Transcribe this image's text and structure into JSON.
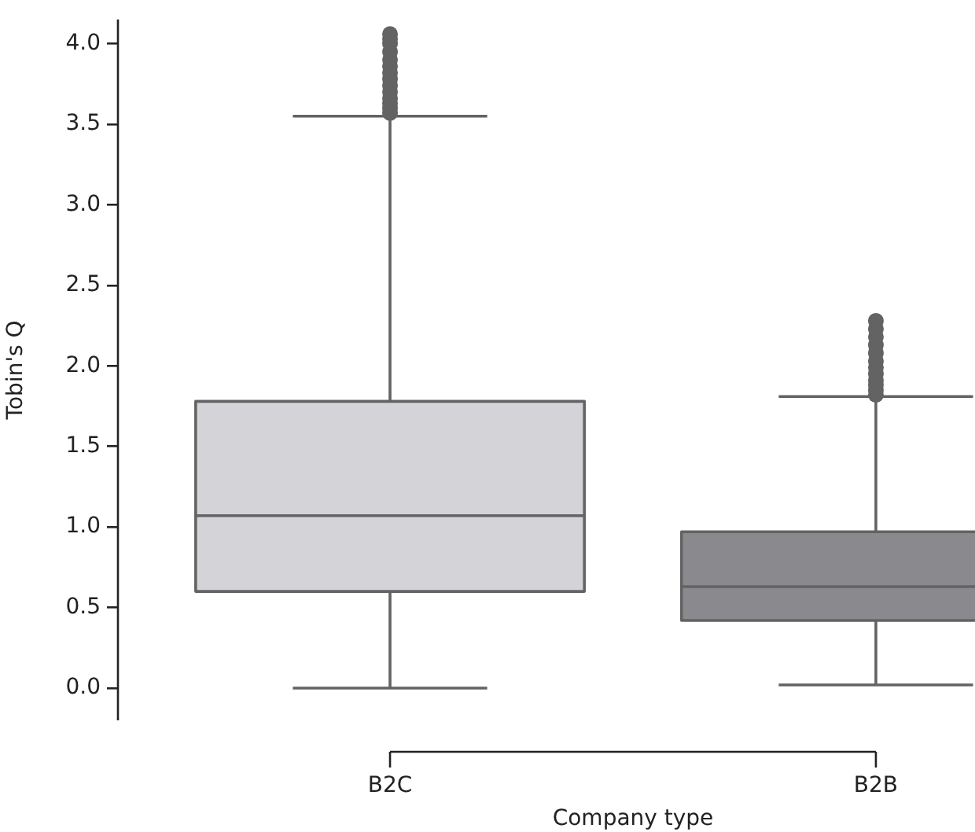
{
  "chart_data": {
    "type": "box",
    "xlabel": "Company type",
    "ylabel": "Tobin's Q",
    "categories": [
      "B2C",
      "B2B"
    ],
    "colors": [
      "#d4d4d8",
      "#8a8a8e"
    ],
    "boxes": [
      {
        "low": 0,
        "q1": 0.6,
        "median": 1.07,
        "q3": 1.78,
        "high": 3.55,
        "outliers": [
          3.57,
          3.6,
          3.63,
          3.66,
          3.7,
          3.74,
          3.78,
          3.82,
          3.86,
          3.9,
          3.95,
          4.0,
          4.03,
          4.06
        ]
      },
      {
        "low": 0.02,
        "q1": 0.42,
        "median": 0.63,
        "q3": 0.97,
        "high": 1.81,
        "outliers": [
          1.82,
          1.85,
          1.88,
          1.91,
          1.95,
          1.99,
          2.03,
          2.08,
          2.13,
          2.18,
          2.23,
          2.28
        ]
      }
    ],
    "ylim": [
      -0.2,
      4.15
    ],
    "yticks": [
      {
        "value": 0,
        "label": "0.0"
      },
      0.5,
      {
        "value": 1,
        "label": "1.0"
      },
      1.5,
      {
        "value": 2,
        "label": "2.0"
      },
      2.5,
      {
        "value": 3,
        "label": "3.0"
      },
      3.5,
      {
        "value": 4,
        "label": "4.0"
      }
    ],
    "grid": false,
    "legend": false
  }
}
